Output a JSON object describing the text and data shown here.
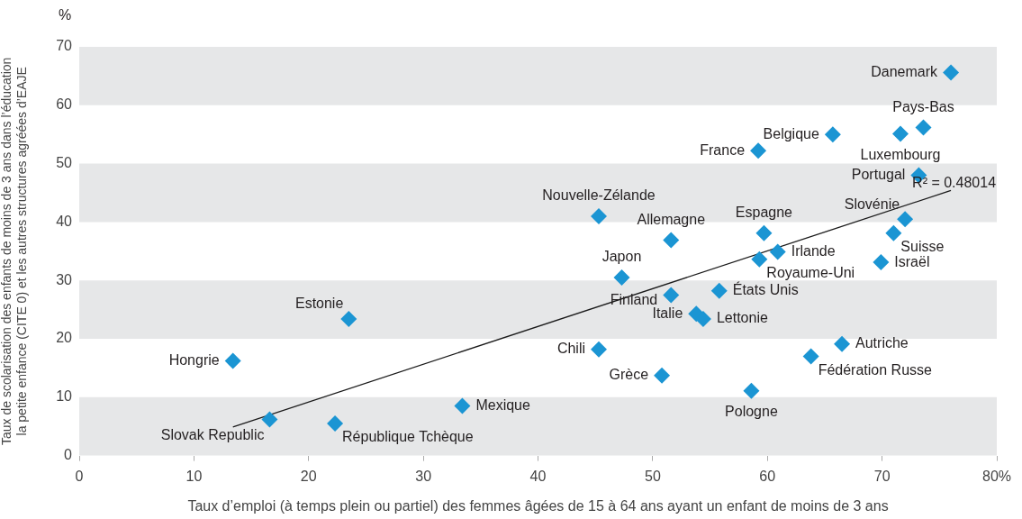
{
  "chart_data": {
    "type": "scatter",
    "xlabel": "Taux d’emploi (à temps plein ou partiel) des femmes âgées de 15 à 64 ans ayant un enfant de moins de 3 ans",
    "ylabel": "Taux de scolarisation des enfants de moins de 3 ans dans l’éducation\nla petite enfance (CITE 0) et les autres structures agréées d’EAJE",
    "xlim": [
      0,
      80
    ],
    "xticks": [
      0,
      10,
      20,
      30,
      40,
      50,
      60,
      70,
      {
        "value": 80,
        "label": "80%"
      }
    ],
    "ylim": [
      0,
      70
    ],
    "yticks": [
      0,
      10,
      20,
      30,
      40,
      50,
      60,
      70
    ],
    "grid": false,
    "legend": false,
    "marker": "diamond",
    "bands": [
      {
        "axis": "y",
        "from": 0,
        "to": 10,
        "color": "#e6e7e8"
      },
      {
        "axis": "y",
        "from": 20,
        "to": 30,
        "color": "#e6e7e8"
      },
      {
        "axis": "y",
        "from": 40,
        "to": 50,
        "color": "#e6e7e8"
      },
      {
        "axis": "y",
        "from": 60,
        "to": 70,
        "color": "#e6e7e8"
      }
    ],
    "series": [
      {
        "color": "#1b95d3",
        "x": [
          76.0,
          73.6,
          71.6,
          65.7,
          59.2,
          73.2,
          45.3,
          72.0,
          51.6,
          59.7,
          71.0,
          60.9,
          59.3,
          69.9,
          47.3,
          51.6,
          55.8,
          53.8,
          54.4,
          23.5,
          13.4,
          45.3,
          66.5,
          63.8,
          50.8,
          58.6,
          33.4,
          16.6,
          22.3
        ],
        "values": [
          65.6,
          56.2,
          55.1,
          55.0,
          52.2,
          48.0,
          41.0,
          40.5,
          36.9,
          38.1,
          38.1,
          34.9,
          33.6,
          33.1,
          30.5,
          27.5,
          28.2,
          24.3,
          23.4,
          23.4,
          16.2,
          18.2,
          19.1,
          17.0,
          13.7,
          11.1,
          8.5,
          6.2,
          5.5
        ]
      },
      {
        "type": "line",
        "color": "#1a1a1a",
        "marker": "none",
        "x": [
          13.4,
          76.0
        ],
        "values": [
          4.9,
          45.4
        ]
      }
    ],
    "annotations": [
      "%",
      {
        "text": "R² = 0.48014",
        "x": 76.0,
        "y": 45.4
      },
      {
        "text": "Danemark",
        "x": 76.0,
        "y": 65.6
      },
      {
        "text": "Pays-Bas",
        "x": 73.6,
        "y": 56.2
      },
      {
        "text": "Luxembourg",
        "x": 71.6,
        "y": 55.1
      },
      {
        "text": "Belgique",
        "x": 65.7,
        "y": 55.0
      },
      {
        "text": "France",
        "x": 59.2,
        "y": 52.2
      },
      {
        "text": "Portugal",
        "x": 73.2,
        "y": 48.0
      },
      {
        "text": "Nouvelle-Zélande",
        "x": 45.3,
        "y": 41.0
      },
      {
        "text": "Slovénie",
        "x": 72.0,
        "y": 40.5
      },
      {
        "text": "Allemagne",
        "x": 51.6,
        "y": 36.9
      },
      {
        "text": "Espagne",
        "x": 59.7,
        "y": 38.1
      },
      {
        "text": "Suisse",
        "x": 71.0,
        "y": 38.1
      },
      {
        "text": "Irlande",
        "x": 60.9,
        "y": 34.9
      },
      {
        "text": "Royaume-Uni",
        "x": 59.3,
        "y": 33.6
      },
      {
        "text": "Israël",
        "x": 69.9,
        "y": 33.1
      },
      {
        "text": "Japon",
        "x": 47.3,
        "y": 30.5
      },
      {
        "text": "Finland",
        "x": 51.6,
        "y": 27.5
      },
      {
        "text": "États Unis",
        "x": 55.8,
        "y": 28.2
      },
      {
        "text": "Italie",
        "x": 53.8,
        "y": 24.3
      },
      {
        "text": "Lettonie",
        "x": 54.4,
        "y": 23.4
      },
      {
        "text": "Estonie",
        "x": 23.5,
        "y": 23.4
      },
      {
        "text": "Hongrie",
        "x": 13.4,
        "y": 16.2
      },
      {
        "text": "Chili",
        "x": 45.3,
        "y": 18.2
      },
      {
        "text": "Autriche",
        "x": 66.5,
        "y": 19.1
      },
      {
        "text": "Fédération Russe",
        "x": 63.8,
        "y": 17.0
      },
      {
        "text": "Grèce",
        "x": 50.8,
        "y": 13.7
      },
      {
        "text": "Pologne",
        "x": 58.6,
        "y": 11.1
      },
      {
        "text": "Mexique",
        "x": 33.4,
        "y": 8.5
      },
      {
        "text": "Slovak Republic",
        "x": 16.6,
        "y": 6.2
      },
      {
        "text": "République Tchèque",
        "x": 22.3,
        "y": 5.5
      }
    ]
  }
}
